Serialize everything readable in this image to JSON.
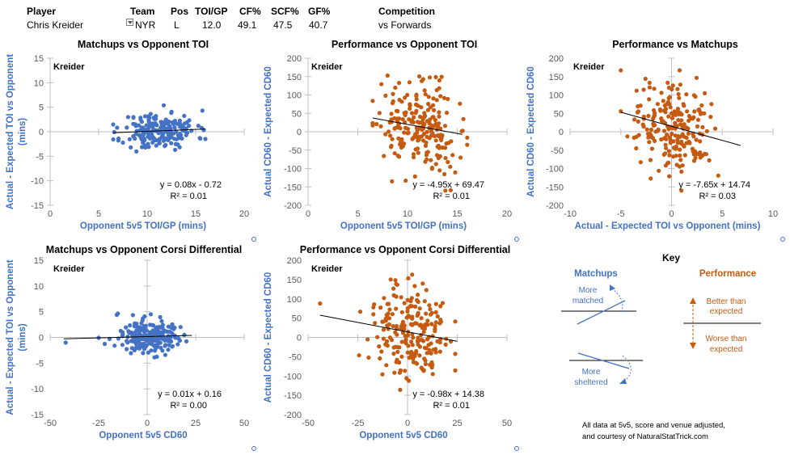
{
  "header": {
    "labels": {
      "player": "Player",
      "team": "Team",
      "pos": "Pos",
      "toi_gp": "TOI/GP",
      "cf_pct": "CF%",
      "scf_pct": "SCF%",
      "gf_pct": "GF%",
      "competition": "Competition"
    },
    "values": {
      "player": "Chris Kreider",
      "team": "NYR",
      "pos": "L",
      "toi_gp": "12.0",
      "cf_pct": "49.1",
      "scf_pct": "47.5",
      "gf_pct": "40.7",
      "competition": "vs Forwards"
    }
  },
  "colors": {
    "blue": "#4472c4",
    "orange": "#c55a11",
    "axis_text": "#595959"
  },
  "key": {
    "title": "Key",
    "matchups_label": "Matchups",
    "performance_label": "Performance",
    "more_matched": [
      "More",
      "matched"
    ],
    "more_sheltered": [
      "More",
      "sheltered"
    ],
    "better": [
      "Better than",
      "expected"
    ],
    "worse": [
      "Worse than",
      "expected"
    ]
  },
  "footnote": [
    "All data at 5v5, score and venue adjusted,",
    "and courtesy of NaturalStatTrick.com"
  ],
  "chart_data": [
    {
      "id": "c1",
      "type": "scatter",
      "title": "Matchups vs Opponent TOI",
      "player_label": "Kreider",
      "xlabel": "Opponent 5v5 TOI/GP (mins)",
      "ylabel": "Actual - Expected TOI vs Opponent (mins)",
      "xlim": [
        0,
        20
      ],
      "ylim": [
        -15,
        15
      ],
      "xticks": [
        0,
        5,
        10,
        15,
        20
      ],
      "yticks": [
        -15,
        -10,
        -5,
        0,
        5,
        10,
        15
      ],
      "cross": [
        0,
        0
      ],
      "cross_y_zero": true,
      "color": "#4472c4",
      "trend": {
        "slope": 0.08,
        "intercept": -0.72,
        "x_range": [
          6.5,
          16
        ]
      },
      "equation": "y = 0.08x - 0.72",
      "r2": "R² = 0.01",
      "gen": {
        "seed": 11,
        "n": 200,
        "x_mean": 11.3,
        "x_sd": 1.9,
        "x_range": [
          6.5,
          16
        ],
        "slope": 0.08,
        "intercept": -0.72,
        "noise_sd": 1.9,
        "y_range": [
          -4.8,
          6.5
        ]
      }
    },
    {
      "id": "c2",
      "type": "scatter",
      "title": "Performance vs Opponent TOI",
      "player_label": "Kreider",
      "xlabel": "Opponent 5v5 TOI/GP (mins)",
      "ylabel": "Actual CD60 - Expected CD60",
      "xlim": [
        0,
        20
      ],
      "ylim": [
        -200,
        200
      ],
      "xticks": [
        0,
        5,
        10,
        15,
        20
      ],
      "yticks": [
        -200,
        -150,
        -100,
        -50,
        0,
        50,
        100,
        150,
        200
      ],
      "cross_y_zero": true,
      "color": "#c55a11",
      "trend": {
        "slope": -4.95,
        "intercept": 69.47,
        "x_range": [
          6.5,
          15.5
        ]
      },
      "equation": "y = -4.95x + 69.47",
      "r2": "R² = 0.01",
      "gen": {
        "seed": 22,
        "n": 220,
        "x_mean": 11.3,
        "x_sd": 1.9,
        "x_range": [
          6.5,
          16
        ],
        "slope": -4.95,
        "intercept": 69.47,
        "noise_sd": 58,
        "y_range": [
          -160,
          195
        ]
      }
    },
    {
      "id": "c3",
      "type": "scatter",
      "title": "Performance vs Matchups",
      "player_label": "Kreider",
      "xlabel": "Actual - Expected TOI vs Opponent (mins)",
      "ylabel": "Actual CD60 - Expected CD60",
      "xlim": [
        -10,
        10
      ],
      "ylim": [
        -200,
        200
      ],
      "xticks": [
        -10,
        -5,
        0,
        5,
        10
      ],
      "yticks": [
        -200,
        -150,
        -100,
        -50,
        0,
        50,
        100,
        150,
        200
      ],
      "cross_x_zero": true,
      "cross_y_zero": true,
      "color": "#c55a11",
      "trend": {
        "slope": -7.65,
        "intercept": 14.74,
        "x_range": [
          -5,
          6.8
        ]
      },
      "equation": "y = -7.65x + 14.74",
      "r2": "R² = 0.03",
      "gen": {
        "seed": 33,
        "n": 220,
        "x_mean": 0.2,
        "x_sd": 1.9,
        "x_range": [
          -5,
          6.5
        ],
        "slope": -7.65,
        "intercept": 14.74,
        "noise_sd": 58,
        "y_range": [
          -160,
          195
        ]
      }
    },
    {
      "id": "c4",
      "type": "scatter",
      "title": "Matchups vs Opponent Corsi Differential",
      "player_label": "Kreider",
      "xlabel": "Opponent 5v5 CD60",
      "ylabel": "Actual - Expected TOI vs Opponent (mins)",
      "xlim": [
        -50,
        50
      ],
      "ylim": [
        -15,
        15
      ],
      "xticks": [
        -50,
        -25,
        0,
        25,
        50
      ],
      "yticks": [
        -15,
        -10,
        -5,
        0,
        5,
        10,
        15
      ],
      "cross_x_zero": true,
      "cross_y_zero": true,
      "color": "#4472c4",
      "trend": {
        "slope": 0.01,
        "intercept": 0.16,
        "x_range": [
          -43,
          23
        ]
      },
      "equation": "y = 0.01x + 0.16",
      "r2": "R² = 0.00",
      "gen": {
        "seed": 44,
        "n": 210,
        "x_mean": 1,
        "x_sd": 9,
        "x_range": [
          -25,
          22
        ],
        "slope": 0.01,
        "intercept": 0.16,
        "noise_sd": 1.8,
        "y_range": [
          -4.8,
          6.5
        ],
        "extra": [
          [
            -42,
            -1
          ]
        ]
      }
    },
    {
      "id": "c5",
      "type": "scatter",
      "title": "Performance vs Opponent Corsi Differential",
      "player_label": "Kreider",
      "xlabel": "Opponent 5v5 CD60",
      "ylabel": "Actual CD60 - Expected CD60",
      "xlim": [
        -50,
        50
      ],
      "ylim": [
        -200,
        200
      ],
      "xticks": [
        -50,
        -25,
        0,
        25,
        50
      ],
      "yticks": [
        -200,
        -150,
        -100,
        -50,
        0,
        50,
        100,
        150,
        200
      ],
      "cross_x_zero": true,
      "cross_y_zero": true,
      "color": "#c55a11",
      "trend": {
        "slope": -0.98,
        "intercept": 14.38,
        "x_range": [
          -44,
          25
        ]
      },
      "equation": "y = -0.98x + 14.38",
      "r2": "R² = 0.01",
      "gen": {
        "seed": 55,
        "n": 220,
        "x_mean": 1,
        "x_sd": 10,
        "x_range": [
          -25,
          24
        ],
        "slope": -0.98,
        "intercept": 14.38,
        "noise_sd": 58,
        "y_range": [
          -160,
          195
        ],
        "extra": [
          [
            -44,
            88
          ]
        ]
      }
    }
  ]
}
